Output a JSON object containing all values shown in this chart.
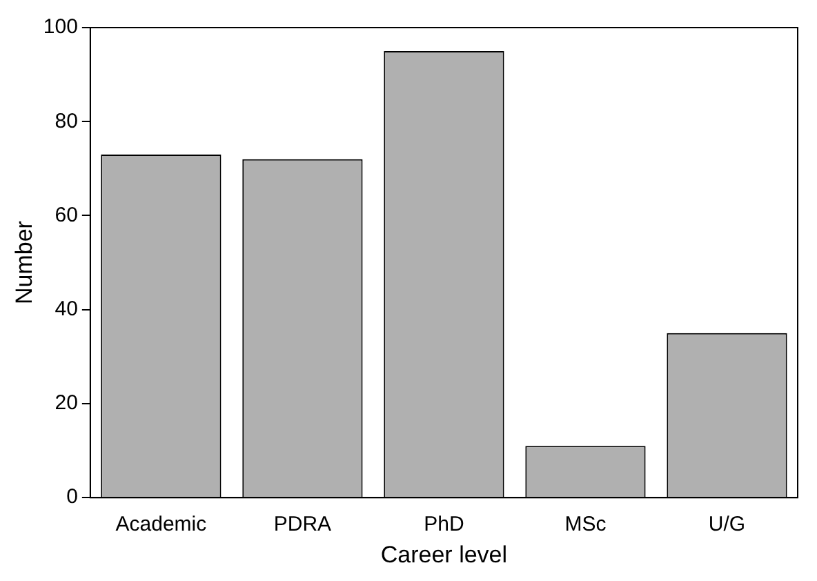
{
  "chart_data": {
    "type": "bar",
    "xlabel": "Career level",
    "ylabel": "Number",
    "categories": [
      "Academic",
      "PDRA",
      "PhD",
      "MSc",
      "U/G"
    ],
    "values": [
      73,
      72,
      95,
      11,
      35
    ],
    "color": "#b0b0b0",
    "ylim": [
      0,
      100
    ],
    "yticks": [
      0,
      20,
      40,
      60,
      80,
      100
    ]
  }
}
